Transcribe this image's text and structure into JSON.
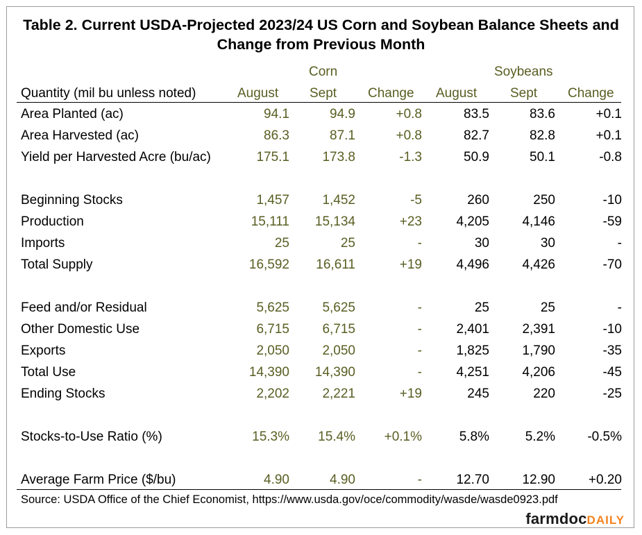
{
  "title_line1": "Table 2. Current USDA-Projected 2023/24 US Corn and Soybean Balance Sheets and",
  "title_line2": "Change from Previous Month",
  "groups": {
    "corn": "Corn",
    "soybeans": "Soybeans"
  },
  "columns": {
    "quantity": "Quantity (mil bu unless noted)",
    "corn_aug": "August",
    "corn_sept": "Sept",
    "corn_change": "Change",
    "soy_aug": "August",
    "soy_sept": "Sept",
    "soy_change": "Change"
  },
  "rows": [
    {
      "label": "Area Planted (ac)",
      "values": [
        "94.1",
        "94.9",
        "+0.8",
        "83.5",
        "83.6",
        "+0.1"
      ]
    },
    {
      "label": "Area Harvested (ac)",
      "values": [
        "86.3",
        "87.1",
        "+0.8",
        "82.7",
        "82.8",
        "+0.1"
      ]
    },
    {
      "label": "Yield per Harvested Acre (bu/ac)",
      "values": [
        "175.1",
        "173.8",
        "-1.3",
        "50.9",
        "50.1",
        "-0.8"
      ]
    },
    {
      "label": "Beginning Stocks",
      "values": [
        "1,457",
        "1,452",
        "-5",
        "260",
        "250",
        "-10"
      ]
    },
    {
      "label": "Production",
      "values": [
        "15,111",
        "15,134",
        "+23",
        "4,205",
        "4,146",
        "-59"
      ]
    },
    {
      "label": "Imports",
      "values": [
        "25",
        "25",
        "-",
        "30",
        "30",
        "-"
      ]
    },
    {
      "label": "Total Supply",
      "values": [
        "16,592",
        "16,611",
        "+19",
        "4,496",
        "4,426",
        "-70"
      ]
    },
    {
      "label": "Feed and/or Residual",
      "values": [
        "5,625",
        "5,625",
        "-",
        "25",
        "25",
        "-"
      ]
    },
    {
      "label": "Other Domestic Use",
      "values": [
        "6,715",
        "6,715",
        "-",
        "2,401",
        "2,391",
        "-10"
      ]
    },
    {
      "label": "Exports",
      "values": [
        "2,050",
        "2,050",
        "-",
        "1,825",
        "1,790",
        "-35"
      ]
    },
    {
      "label": "Total Use",
      "values": [
        "14,390",
        "14,390",
        "-",
        "4,251",
        "4,206",
        "-45"
      ]
    },
    {
      "label": "Ending Stocks",
      "values": [
        "2,202",
        "2,221",
        "+19",
        "245",
        "220",
        "-25"
      ]
    },
    {
      "label": "Stocks-to-Use Ratio (%)",
      "values": [
        "15.3%",
        "15.4%",
        "+0.1%",
        "5.8%",
        "5.2%",
        "-0.5%"
      ]
    },
    {
      "label": "Average Farm Price ($/bu)",
      "values": [
        "4.90",
        "4.90",
        "-",
        "12.70",
        "12.90",
        "+0.20"
      ]
    }
  ],
  "source": "Source: USDA Office of the Chief Economist, https://www.usda.gov/oce/commodity/wasde/wasde0923.pdf",
  "logo": {
    "part1": "farmdoc",
    "part2": "DAILY"
  },
  "colors": {
    "corn_text": "#595e22",
    "logo_accent": "#f5821f",
    "border": "#9a9a9a"
  }
}
